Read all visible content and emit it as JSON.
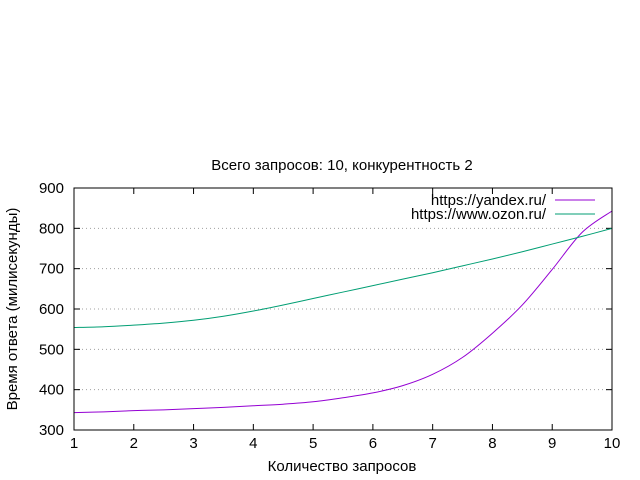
{
  "chart_data": {
    "type": "line",
    "title": "Всего запросов: 10, конкурентность 2",
    "xlabel": "Количество запросов",
    "ylabel": "Время ответа (милисекунды)",
    "xlim": [
      1,
      10
    ],
    "ylim": [
      300,
      900
    ],
    "xticks": [
      1,
      2,
      3,
      4,
      5,
      6,
      7,
      8,
      9,
      10
    ],
    "yticks": [
      300,
      400,
      500,
      600,
      700,
      800,
      900
    ],
    "grid": "horizontal dotted",
    "legend_position": "top-right",
    "series": [
      {
        "name": "https://yandex.ru/",
        "color": "#9400d3",
        "x": [
          1,
          1.5,
          2,
          2.5,
          3,
          3.5,
          4,
          4.5,
          5,
          5.5,
          6,
          6.5,
          7,
          7.5,
          8,
          8.5,
          9,
          9.5,
          10
        ],
        "y": [
          343,
          345,
          348,
          350,
          353,
          356,
          360,
          364,
          370,
          380,
          392,
          410,
          438,
          480,
          540,
          610,
          698,
          790,
          843
        ]
      },
      {
        "name": "https://www.ozon.ru/",
        "color": "#009e73",
        "x": [
          1,
          1.5,
          2,
          2.5,
          3,
          3.5,
          4,
          4.5,
          5,
          5.5,
          6,
          6.5,
          7,
          7.5,
          8,
          8.5,
          9,
          9.5,
          10
        ],
        "y": [
          554,
          556,
          560,
          565,
          572,
          582,
          595,
          610,
          626,
          642,
          658,
          674,
          690,
          707,
          724,
          742,
          761,
          780,
          800
        ]
      }
    ]
  }
}
